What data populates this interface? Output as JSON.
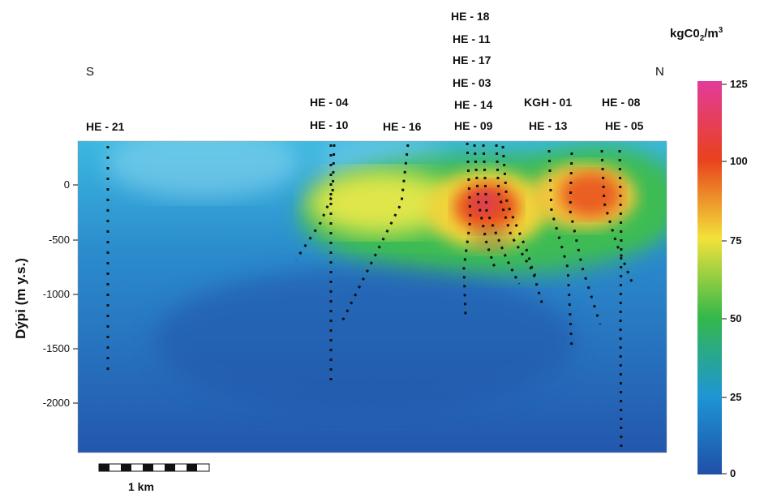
{
  "chart_data": {
    "type": "heatmap",
    "title": "",
    "ylabel": "Dýpi (m y.s.)",
    "yticks": [
      "0",
      "-500",
      "-1000",
      "-1500",
      "-2000"
    ],
    "yrange": [
      -2500,
      400
    ],
    "direction_left": "S",
    "direction_right": "N",
    "colorbar": {
      "title_main": "kgC0",
      "title_sub": "2",
      "title_tail": "/m",
      "title_sup": "3",
      "ticks": [
        "125",
        "100",
        "75",
        "50",
        "25",
        "0"
      ],
      "range": [
        0,
        125
      ],
      "colors": [
        "#1f4fa8",
        "#1e96d4",
        "#34b84a",
        "#f2e23a",
        "#e8421c",
        "#e23b9b"
      ]
    },
    "wells": [
      "HE - 21",
      "HE - 04",
      "HE - 10",
      "HE - 16",
      "HE - 18",
      "HE - 11",
      "HE - 17",
      "HE - 03",
      "HE - 14",
      "HE - 09",
      "KGH - 01",
      "HE - 13",
      "HE - 08",
      "HE - 05"
    ],
    "scale_bar_label": "1 km",
    "high_zones": [
      {
        "name": "south-central",
        "value": 100,
        "depth_m": -300
      },
      {
        "name": "north",
        "value": 90,
        "depth_m": -150
      }
    ]
  }
}
